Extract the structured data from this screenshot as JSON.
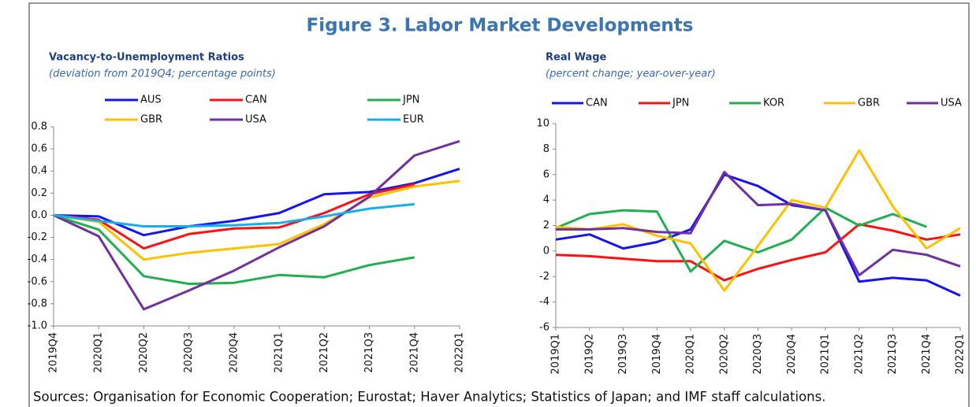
{
  "title": "Figure 3. Labor Market Developments",
  "source": "Sources: Organisation for Economic Cooperation; Eurostat; Haver Analytics; Statistics of Japan; and IMF staff calculations.",
  "chart_data": [
    {
      "type": "line",
      "title": "Vacancy-to-Unemployment Ratios",
      "subtitle": "(deviation from 2019Q4; percentage points)",
      "categories": [
        "2019Q4",
        "2020Q1",
        "2020Q2",
        "2020Q3",
        "2020Q4",
        "2021Q1",
        "2021Q2",
        "2021Q3",
        "2021Q4",
        "2022Q1"
      ],
      "ylim": [
        -1.0,
        0.8
      ],
      "yticks": [
        {
          "value": -1,
          "label": "-1.0"
        },
        -0.8,
        -0.6,
        -0.4,
        -0.2,
        {
          "value": 0,
          "label": "0.0"
        },
        0.2,
        0.4,
        0.6,
        0.8
      ],
      "series": [
        {
          "name": "AUS",
          "color": "#1414f0",
          "values": [
            0,
            -0.01,
            -0.18,
            -0.1,
            -0.05,
            0.02,
            0.19,
            0.21,
            0.29,
            0.42
          ]
        },
        {
          "name": "CAN",
          "color": "#ff1010",
          "values": [
            0,
            -0.04,
            -0.3,
            -0.17,
            -0.12,
            -0.11,
            0.02,
            0.19,
            0.28,
            null
          ]
        },
        {
          "name": "JPN",
          "color": "#20b050",
          "values": [
            0,
            -0.13,
            -0.55,
            -0.62,
            -0.61,
            -0.54,
            -0.56,
            -0.45,
            -0.38,
            null
          ]
        },
        {
          "name": "GBR",
          "color": "#ffc000",
          "values": [
            0,
            -0.06,
            -0.4,
            -0.34,
            -0.3,
            -0.26,
            -0.08,
            0.16,
            0.26,
            0.31
          ]
        },
        {
          "name": "USA",
          "color": "#7030a0",
          "values": [
            0,
            -0.19,
            -0.85,
            -0.68,
            -0.5,
            -0.29,
            -0.1,
            0.17,
            0.54,
            0.67
          ]
        },
        {
          "name": "EUR",
          "color": "#12b0ef",
          "values": [
            0,
            -0.05,
            -0.1,
            -0.1,
            -0.09,
            -0.07,
            -0.01,
            0.06,
            0.1,
            null
          ]
        }
      ]
    },
    {
      "type": "line",
      "title": "Real Wage",
      "subtitle": "(percent change; year-over-year)",
      "categories": [
        "2019Q1",
        "2019Q2",
        "2019Q3",
        "2019Q4",
        "2020Q1",
        "2020Q2",
        "2020Q3",
        "2020Q4",
        "2021Q1",
        "2021Q2",
        "2021Q3",
        "2021Q4",
        "2022Q1"
      ],
      "ylim": [
        -6,
        10
      ],
      "yticks": [
        -6,
        -4,
        -2,
        0,
        2,
        4,
        6,
        8,
        10
      ],
      "series": [
        {
          "name": "CAN",
          "color": "#1414f0",
          "values": [
            0.9,
            1.3,
            0.2,
            0.7,
            1.7,
            6.0,
            5.1,
            3.6,
            3.2,
            -2.4,
            -2.1,
            -2.3,
            -3.5
          ]
        },
        {
          "name": "JPN",
          "color": "#ff1010",
          "values": [
            -0.3,
            -0.4,
            -0.6,
            -0.8,
            -0.8,
            -2.3,
            -1.4,
            -0.7,
            -0.1,
            2.1,
            1.6,
            0.9,
            1.3
          ]
        },
        {
          "name": "KOR",
          "color": "#20b050",
          "values": [
            1.8,
            2.9,
            3.2,
            3.1,
            -1.6,
            0.8,
            -0.1,
            0.9,
            3.4,
            2.0,
            2.9,
            1.9,
            null
          ]
        },
        {
          "name": "GBR",
          "color": "#ffc000",
          "values": [
            1.9,
            1.7,
            2.1,
            1.2,
            0.6,
            -3.1,
            0.4,
            4.0,
            3.4,
            7.9,
            3.5,
            0.2,
            1.8
          ]
        },
        {
          "name": "USA",
          "color": "#7030a0",
          "values": [
            1.7,
            1.7,
            1.8,
            1.5,
            1.4,
            6.2,
            3.6,
            3.7,
            3.2,
            -1.9,
            0.1,
            -0.3,
            -1.2
          ]
        }
      ]
    }
  ]
}
